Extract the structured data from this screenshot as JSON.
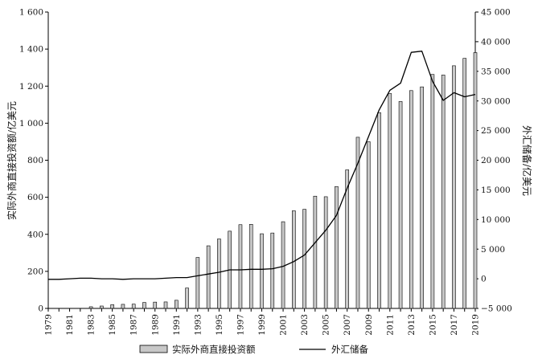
{
  "chart_data": {
    "type": "bar",
    "title": "",
    "xlabel": "",
    "ylabel": "实际外商直接投资额/亿美元",
    "y2label": "外汇储备/亿美元",
    "ylim": [
      0,
      1600
    ],
    "y2lim": [
      -5000,
      45000
    ],
    "grid": false,
    "legend_position": "bottom",
    "x": [
      1979,
      1980,
      1981,
      1982,
      1983,
      1984,
      1985,
      1986,
      1987,
      1988,
      1989,
      1990,
      1991,
      1992,
      1993,
      1994,
      1995,
      1996,
      1997,
      1998,
      1999,
      2000,
      2001,
      2002,
      2003,
      2004,
      2005,
      2006,
      2007,
      2008,
      2009,
      2010,
      2011,
      2012,
      2013,
      2014,
      2015,
      2016,
      2017,
      2018,
      2019
    ],
    "x_tick_labels": [
      "1979",
      "1981",
      "1983",
      "1985",
      "1987",
      "1989",
      "1991",
      "1993",
      "1995",
      "1997",
      "1999",
      "2001",
      "2003",
      "2005",
      "2007",
      "2009",
      "2011",
      "2013",
      "2015",
      "2017",
      "2019"
    ],
    "y_tick_labels": [
      "0",
      "200",
      "400",
      "600",
      "800",
      "1 000",
      "1 200",
      "1 400",
      "1 600"
    ],
    "y2_tick_labels": [
      "−5 000",
      "0",
      "5 000",
      "10 000",
      "15 000",
      "20 000",
      "25 000",
      "30 000",
      "35 000",
      "40 000",
      "45 000"
    ],
    "series": [
      {
        "name": "实际外商直接投资额",
        "type": "bar",
        "axis": "left",
        "color": "#c8c8c8",
        "values": [
          0,
          0,
          0,
          0,
          9,
          13,
          20,
          22,
          23,
          32,
          34,
          35,
          44,
          110,
          275,
          338,
          375,
          417,
          452,
          454,
          403,
          407,
          468,
          527,
          535,
          606,
          603,
          658,
          748,
          924,
          900,
          1057,
          1160,
          1117,
          1176,
          1196,
          1263,
          1260,
          1310,
          1350,
          1381
        ]
      },
      {
        "name": "外汇储备",
        "type": "line",
        "axis": "right",
        "color": "#000000",
        "values": [
          -100,
          -100,
          0,
          100,
          100,
          0,
          0,
          -100,
          0,
          0,
          0,
          100,
          200,
          200,
          500,
          800,
          1100,
          1500,
          1500,
          1600,
          1600,
          1700,
          2100,
          2900,
          4000,
          6100,
          8200,
          10700,
          15300,
          19500,
          24000,
          28500,
          31800,
          33000,
          38200,
          38400,
          33300,
          30100,
          31400,
          30700,
          31100
        ]
      }
    ]
  }
}
